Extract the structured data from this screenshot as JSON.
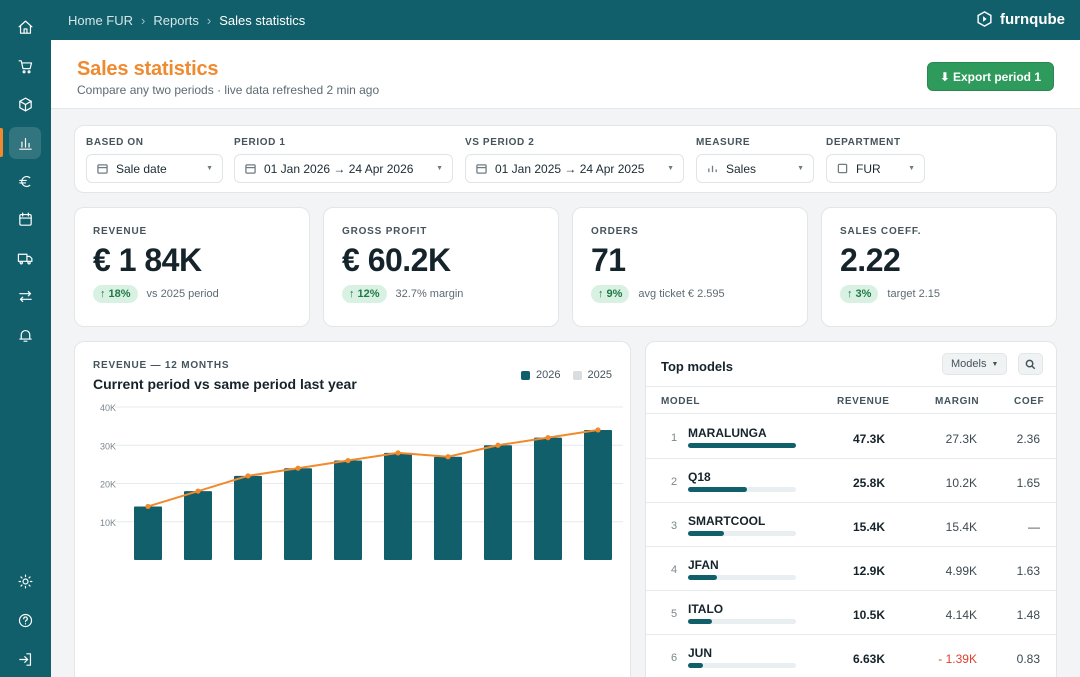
{
  "sidebar": {
    "items": [
      {
        "name": "home",
        "icon": "home-icon"
      },
      {
        "name": "cart",
        "icon": "cart-icon"
      },
      {
        "name": "products",
        "icon": "box-icon"
      },
      {
        "name": "reports",
        "icon": "bar-chart-icon",
        "active": true
      },
      {
        "name": "finance",
        "icon": "euro-icon"
      },
      {
        "name": "calendar",
        "icon": "calendar-icon"
      },
      {
        "name": "delivery",
        "icon": "truck-icon"
      },
      {
        "name": "transfers",
        "icon": "swap-icon"
      },
      {
        "name": "notifications",
        "icon": "bell-icon"
      }
    ],
    "bottom_items": [
      {
        "name": "settings",
        "icon": "sun-icon"
      },
      {
        "name": "help",
        "icon": "help-icon"
      },
      {
        "name": "logout",
        "icon": "logout-icon"
      }
    ]
  },
  "topbar": {
    "breadcrumb": [
      "Home FUR",
      "Reports",
      "Sales statistics"
    ],
    "brand": "furnqube"
  },
  "header": {
    "title": "Sales statistics",
    "subtitle": "Compare any two periods · live data refreshed 2 min ago",
    "export_label": "Export period 1"
  },
  "filters": {
    "based_on": {
      "label": "BASED ON",
      "value": "Sale date"
    },
    "period1": {
      "label": "PERIOD 1",
      "value": "01 Jan 2026 → 24 Apr 2026"
    },
    "period2": {
      "label": "VS PERIOD 2",
      "value": "01 Jan 2025 → 24 Apr 2025"
    },
    "measure": {
      "label": "MEASURE",
      "value": "Sales"
    },
    "department": {
      "label": "DEPARTMENT",
      "value": "FUR"
    }
  },
  "kpis": [
    {
      "label": "REVENUE",
      "value": "€ 1 84K",
      "change": "18%",
      "note": "vs 2025 period"
    },
    {
      "label": "GROSS PROFIT",
      "value": "€ 60.2K",
      "change": "12%",
      "note": "32.7% margin"
    },
    {
      "label": "ORDERS",
      "value": "71",
      "change": "9%",
      "note": "avg ticket € 2.595"
    },
    {
      "label": "SALES COEFF.",
      "value": "2.22",
      "change": "3%",
      "note": "target 2.15"
    }
  ],
  "chart": {
    "kicker": "REVENUE — 12 MONTHS",
    "title": "Current period vs same period last year",
    "legend": [
      "2026",
      "2025"
    ]
  },
  "chart_data": {
    "type": "bar",
    "series": [
      {
        "name": "2026",
        "values": [
          14000,
          18000,
          22000,
          24000,
          26000,
          28000,
          27000,
          30000,
          32000,
          34000
        ],
        "color": "#115f6b",
        "kind": "bar"
      },
      {
        "name": "2025",
        "values": [
          14000,
          18000,
          22000,
          24000,
          26000,
          28000,
          27000,
          30000,
          32000,
          34000
        ],
        "color": "#f08a2c",
        "kind": "line"
      }
    ],
    "y_ticks": [
      "10K",
      "20K",
      "30K",
      "40K"
    ],
    "ylim": [
      0,
      40000
    ],
    "grid": true,
    "legend_placement": "top-right"
  },
  "top_models": {
    "title": "Top models",
    "select_label": "Models",
    "columns": [
      "MODEL",
      "REVENUE",
      "MARGIN",
      "COEF"
    ],
    "rows": [
      {
        "rank": "1",
        "model": "MARALUNGA",
        "revenue": "47.3K",
        "margin": "27.3K",
        "coef": "2.36",
        "share": 1.0
      },
      {
        "rank": "2",
        "model": "Q18",
        "revenue": "25.8K",
        "margin": "10.2K",
        "coef": "1.65",
        "share": 0.55
      },
      {
        "rank": "3",
        "model": "SMARTCOOL",
        "revenue": "15.4K",
        "margin": "15.4K",
        "coef": "—",
        "share": 0.33
      },
      {
        "rank": "4",
        "model": "JFAN",
        "revenue": "12.9K",
        "margin": "4.99K",
        "coef": "1.63",
        "share": 0.27
      },
      {
        "rank": "5",
        "model": "ITALO",
        "revenue": "10.5K",
        "margin": "4.14K",
        "coef": "1.48",
        "share": 0.22
      },
      {
        "rank": "6",
        "model": "JUN",
        "revenue": "6.63K",
        "margin": "- 1.39K",
        "coef": "0.83",
        "share": 0.14,
        "negative": true
      }
    ]
  },
  "colors": {
    "brand": "#115f6b",
    "accent": "#f08a2c",
    "success": "#2e9a5b",
    "negative": "#e0402e"
  }
}
